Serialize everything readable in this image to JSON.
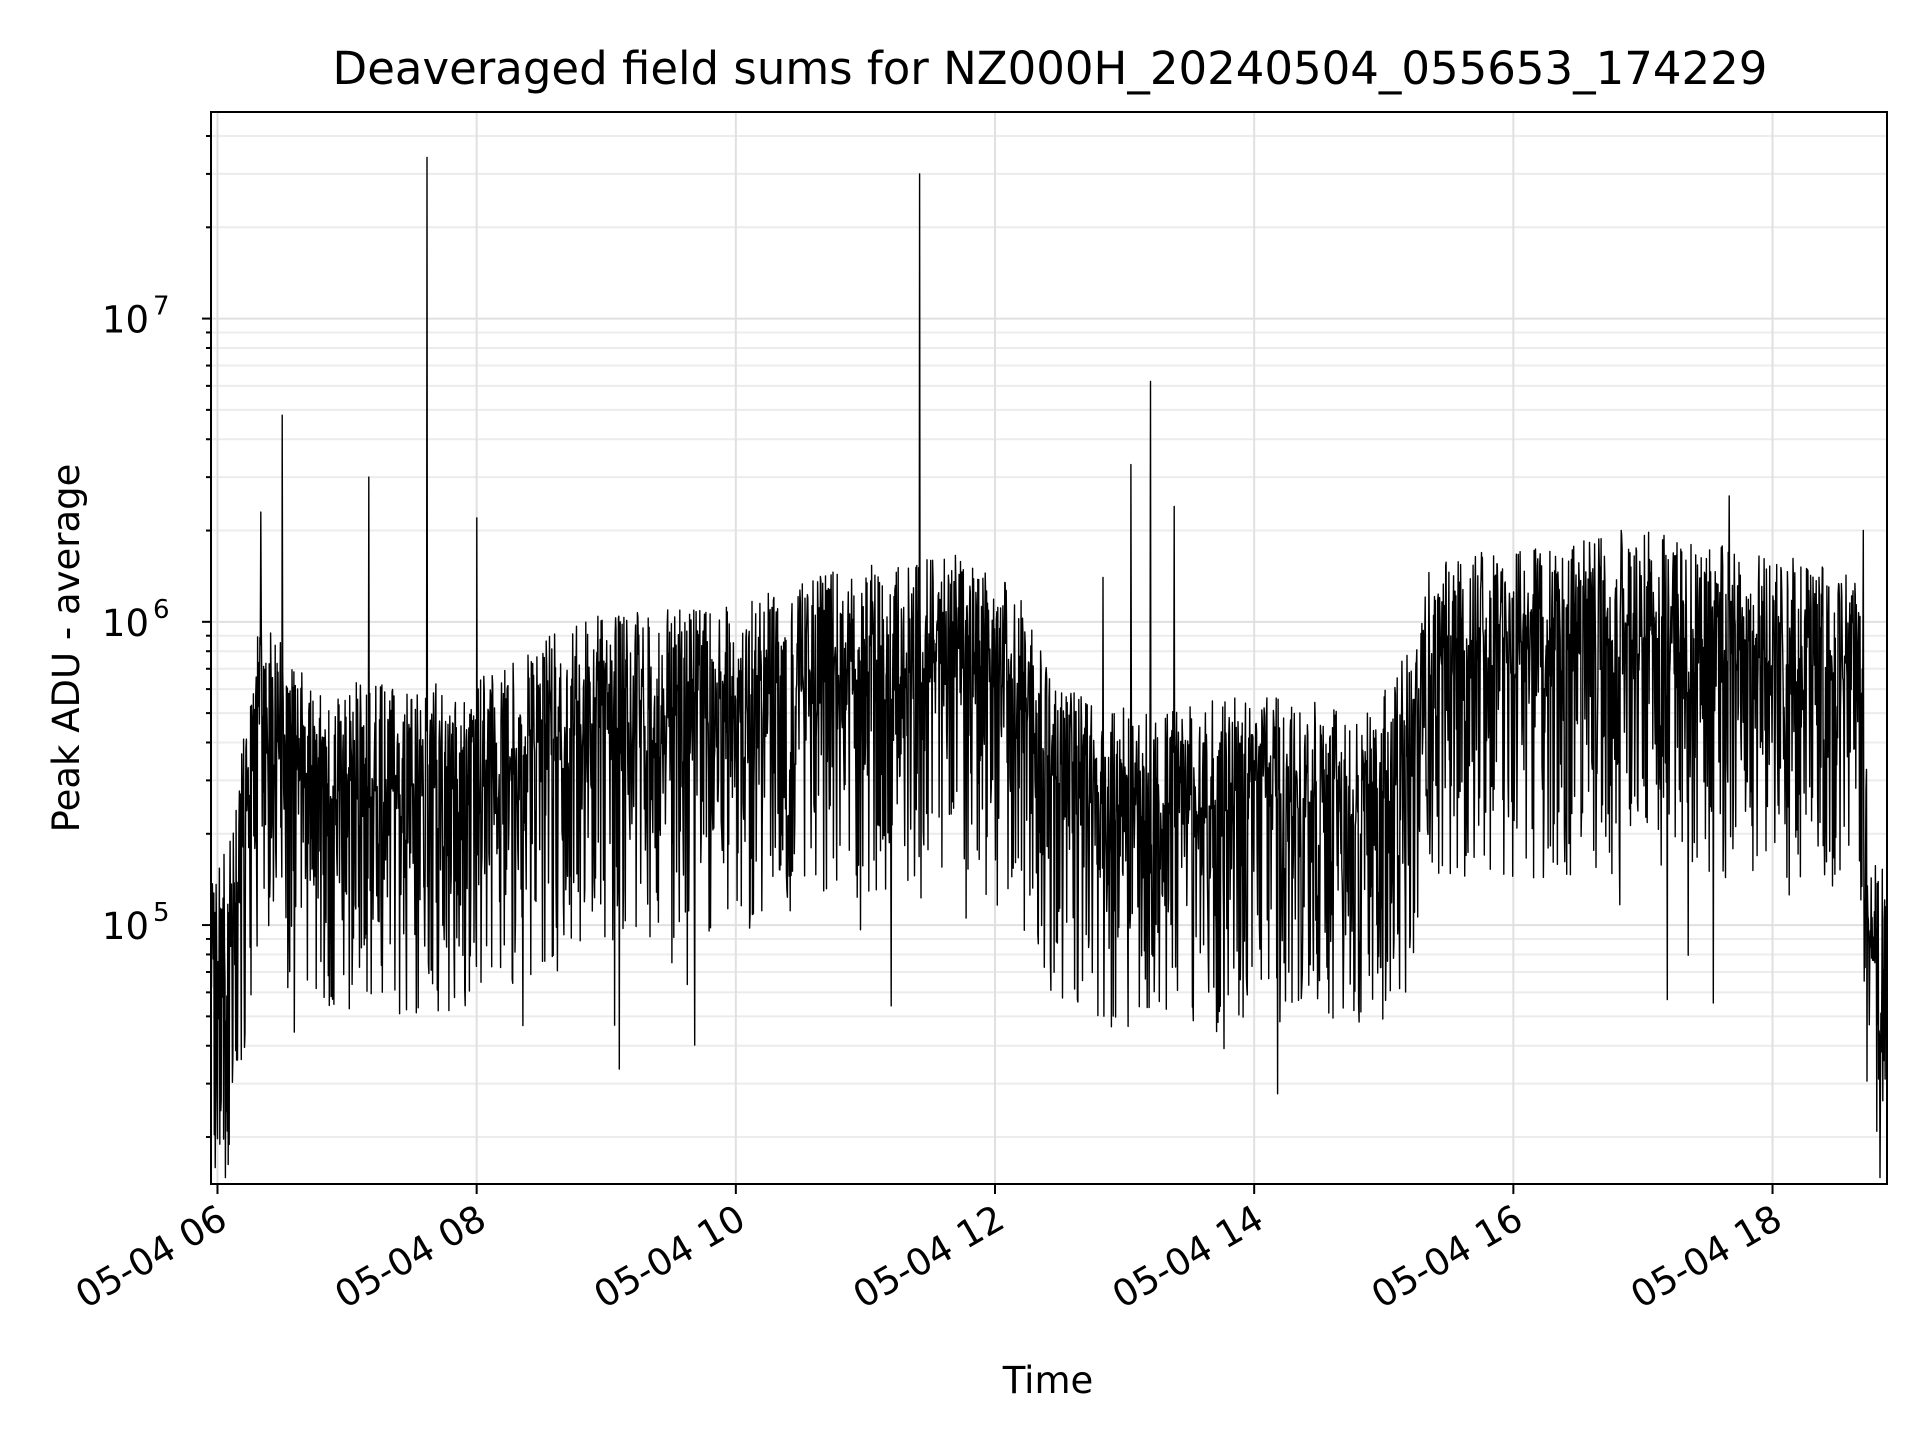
{
  "chart_data": {
    "type": "line",
    "title": "Deaveraged field sums for NZ000H_20240504_055653_174229",
    "xlabel": "Time",
    "ylabel": "Peak ADU - average",
    "x_range": [
      "05-04 05:57",
      "05-04 18:53"
    ],
    "y_scale": "log",
    "ylim": [
      14000,
      48000000
    ],
    "grid": true,
    "minor_grid_y": true,
    "line_color": "#000000",
    "x_ticks": [
      "05-04 06",
      "05-04 08",
      "05-04 10",
      "05-04 12",
      "05-04 14",
      "05-04 16",
      "05-04 18"
    ],
    "y_ticks": [
      {
        "base": "10",
        "exp": "5",
        "value": 100000
      },
      {
        "base": "10",
        "exp": "6",
        "value": 1000000
      },
      {
        "base": "10",
        "exp": "7",
        "value": 10000000
      }
    ],
    "series": [
      {
        "profile_time": [
          "05-04 05:57",
          "05-04 06:05",
          "05-04 06:12",
          "05-04 06:20",
          "05-04 06:40",
          "05-04 07:30",
          "05-04 08:10",
          "05-04 08:40",
          "05-04 09:10",
          "05-04 09:40",
          "05-04 10:10",
          "05-04 10:40",
          "05-04 11:10",
          "05-04 11:40",
          "05-04 12:10",
          "05-04 12:30",
          "05-04 12:50",
          "05-04 13:30",
          "05-04 14:10",
          "05-04 14:50",
          "05-04 15:10",
          "05-04 15:20",
          "05-04 15:40",
          "05-04 16:20",
          "05-04 17:00",
          "05-04 17:40",
          "05-04 18:20",
          "05-04 18:40",
          "05-04 18:45",
          "05-04 18:53"
        ],
        "profile_typical": [
          85000,
          80000,
          200000,
          500000,
          300000,
          280000,
          300000,
          450000,
          480000,
          500000,
          550000,
          650000,
          700000,
          750000,
          600000,
          280000,
          230000,
          240000,
          270000,
          220000,
          350000,
          700000,
          750000,
          800000,
          900000,
          800000,
          700000,
          650000,
          80000,
          65000
        ],
        "spike_times": [
          "05-04 06:20",
          "05-04 06:30",
          "05-04 07:10",
          "05-04 07:37",
          "05-04 08:00",
          "05-04 11:25",
          "05-04 12:50",
          "05-04 13:03",
          "05-04 13:12",
          "05-04 13:23",
          "05-04 16:50",
          "05-04 17:40",
          "05-04 18:42"
        ],
        "spike_values": [
          2300000,
          4800000,
          3000000,
          34000000,
          2200000,
          30000000,
          1400000,
          3300000,
          6200000,
          2400000,
          2000000,
          2600000,
          2000000
        ]
      }
    ]
  }
}
